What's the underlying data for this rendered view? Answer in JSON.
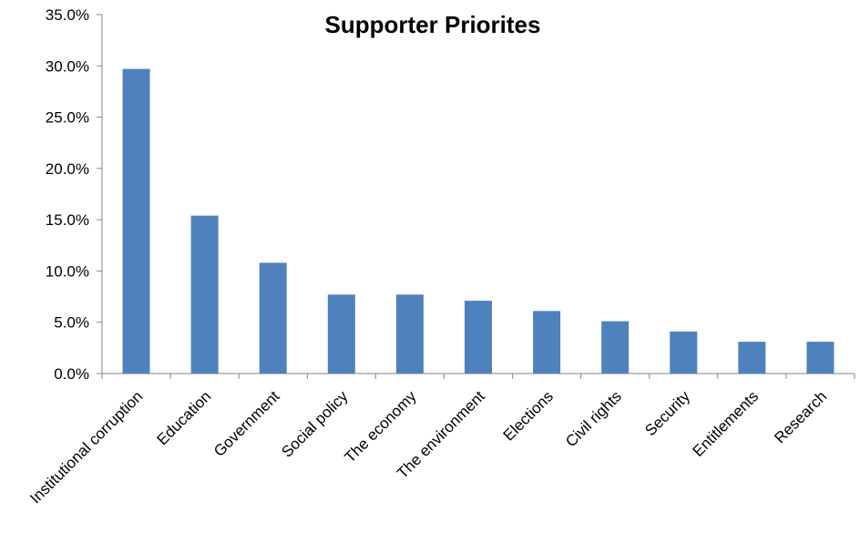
{
  "chart_data": {
    "type": "bar",
    "title": "Supporter Priorites",
    "xlabel": "",
    "ylabel": "",
    "categories": [
      "Institutional corruption",
      "Education",
      "Government",
      "Social policy",
      "The economy",
      "The environment",
      "Elections",
      "Civil rights",
      "Security",
      "Entitlements",
      "Research"
    ],
    "values": [
      29.7,
      15.4,
      10.8,
      7.7,
      7.7,
      7.1,
      6.1,
      5.1,
      4.1,
      3.1,
      3.1
    ],
    "ylim": [
      0,
      35
    ],
    "yticks": [
      0,
      5,
      10,
      15,
      20,
      25,
      30,
      35
    ],
    "ytick_labels": [
      "0.0%",
      "5.0%",
      "10.0%",
      "15.0%",
      "20.0%",
      "25.0%",
      "30.0%",
      "35.0%"
    ],
    "grid": false,
    "legend": "none",
    "bar_color": "#4F81BD",
    "axis_color": "#868686"
  }
}
